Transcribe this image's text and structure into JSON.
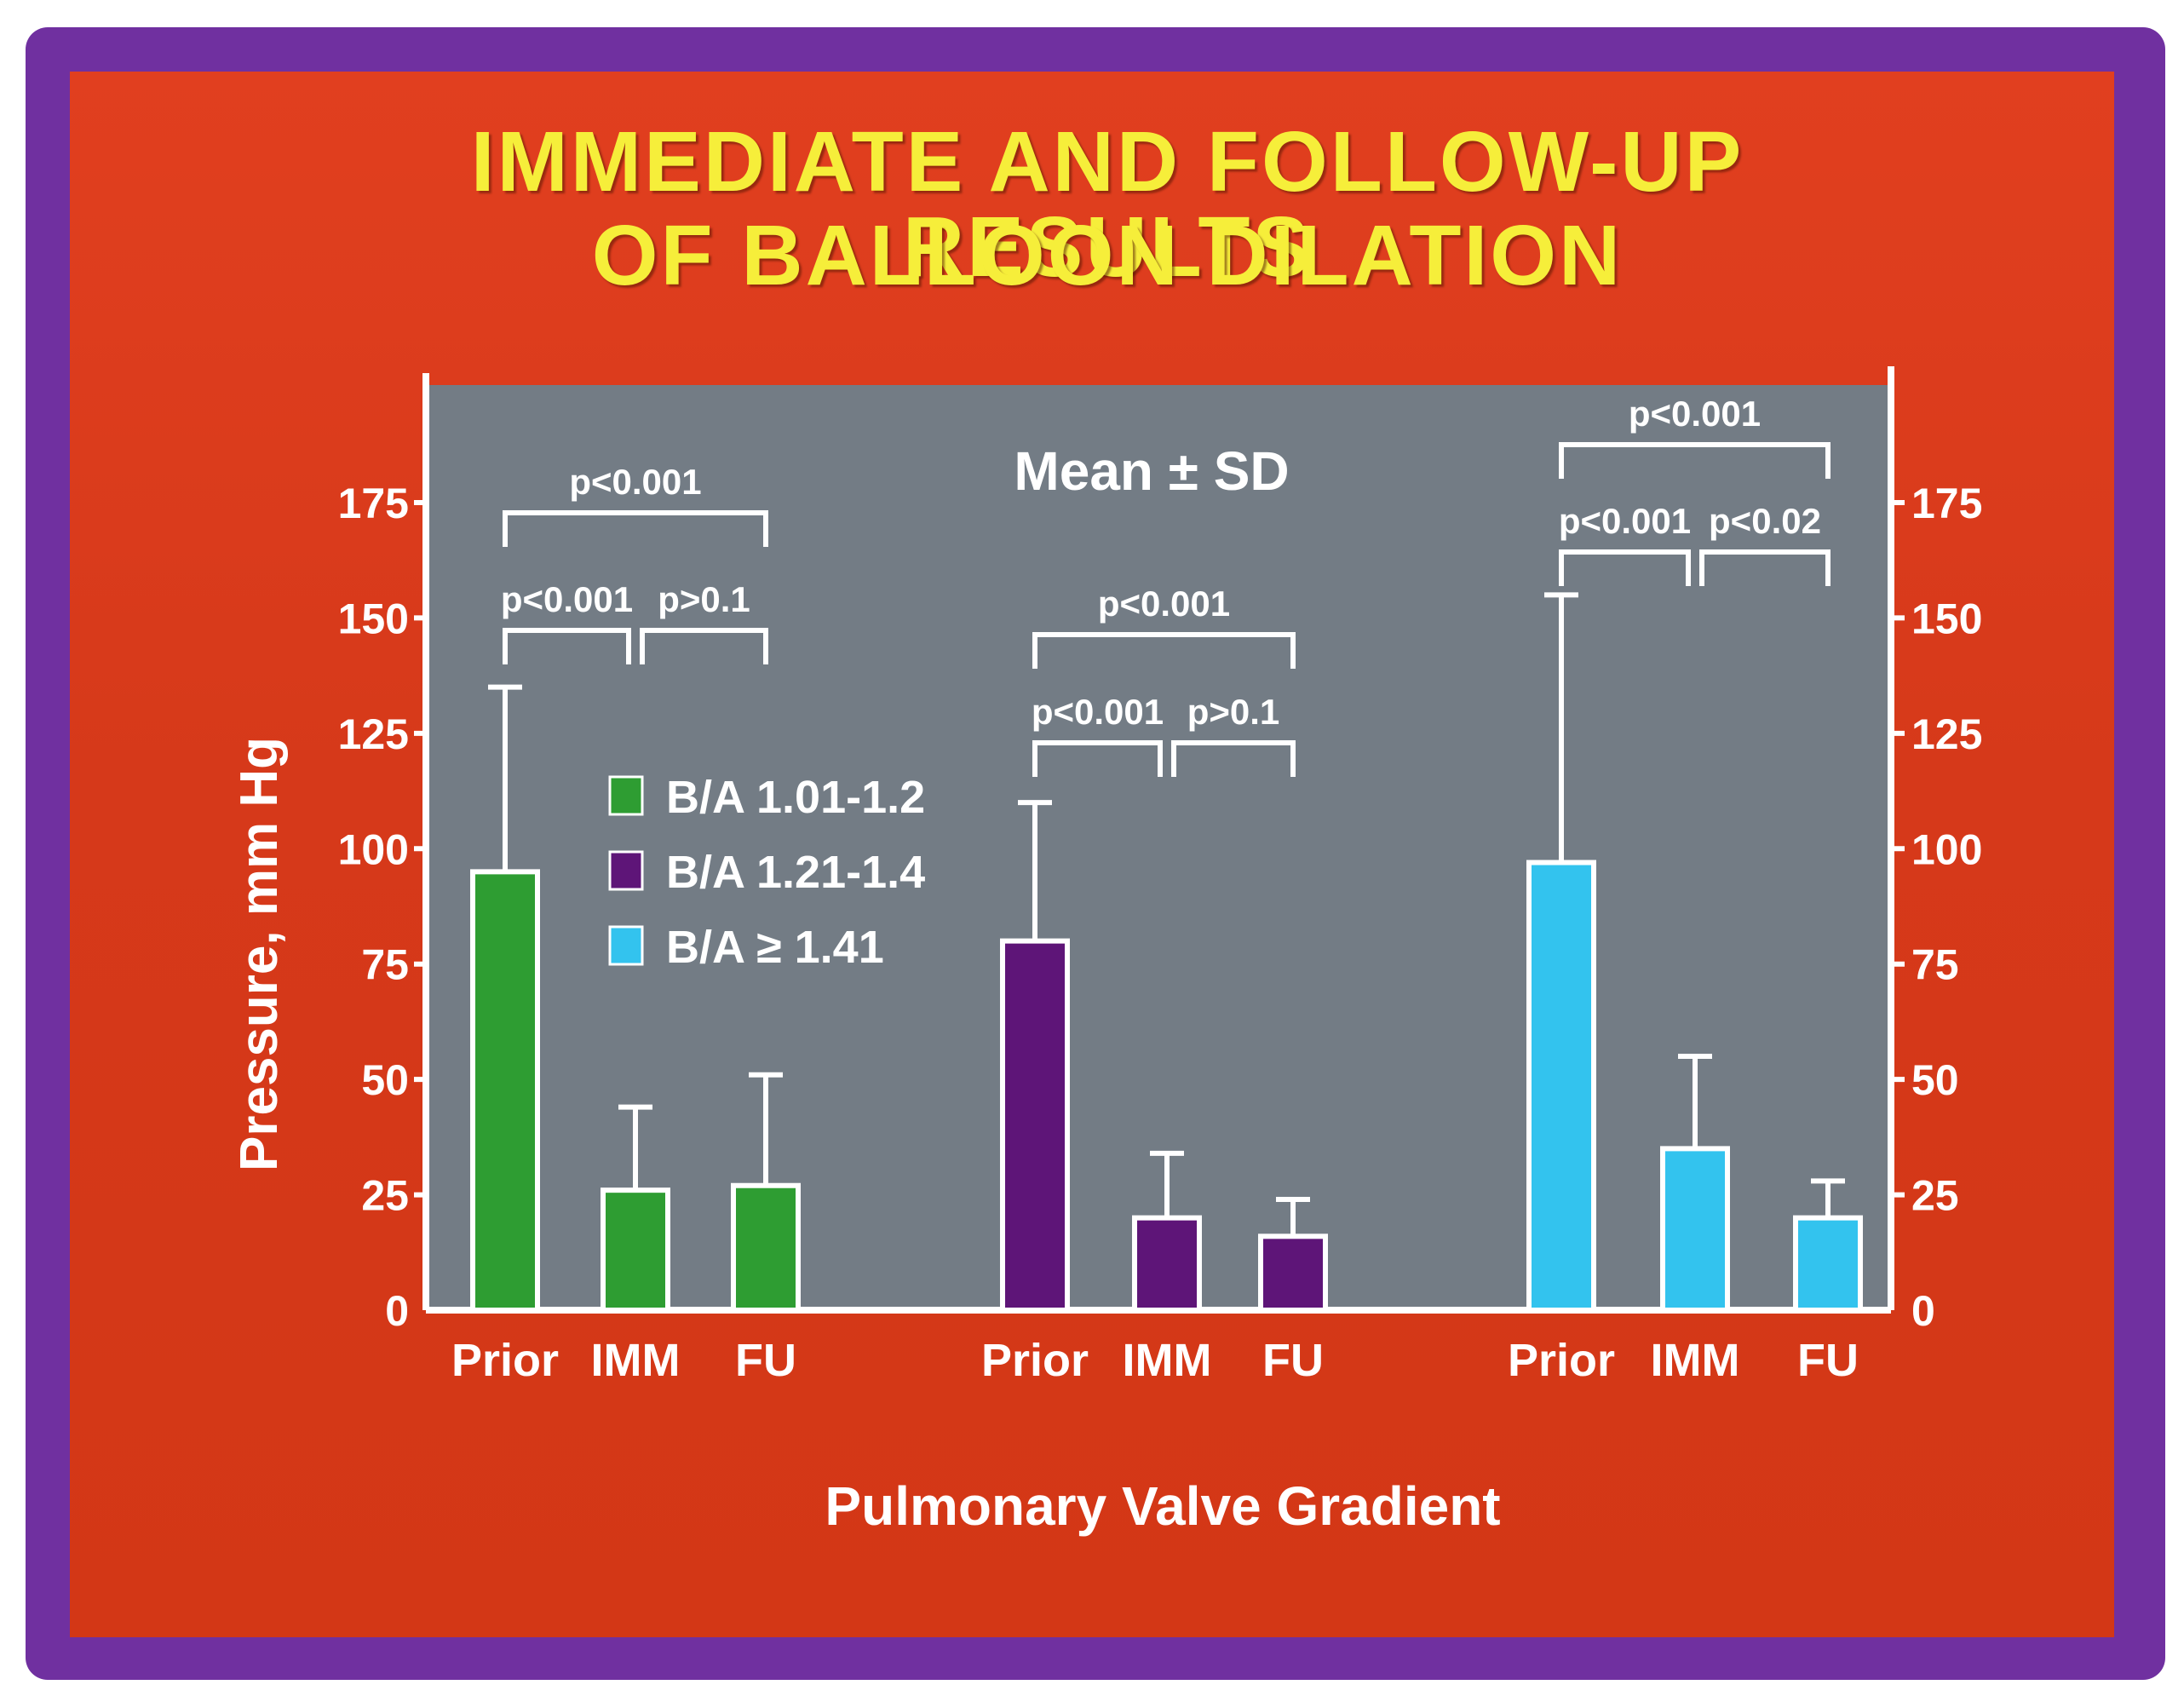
{
  "slide": {
    "title_line1": "IMMEDIATE AND FOLLOW-UP RESULTS",
    "title_line2": "OF BALLOON DILATION"
  },
  "colors": {
    "frame": "#7030a0",
    "slide_background": "#d9391a",
    "plot_background": "#737c85",
    "title": "#f6ee3a",
    "text": "#ffffff",
    "green": "#2e9d32",
    "purple": "#5e1578",
    "cyan": "#33c3ee"
  },
  "chart_data": {
    "type": "bar",
    "annotation": "Mean ± SD",
    "ylabel": "Pressure, mm Hg",
    "xlabel": "Pulmonary Valve Gradient",
    "ylim": [
      0,
      175
    ],
    "yticks": [
      0,
      25,
      50,
      75,
      100,
      125,
      150,
      175
    ],
    "legend_position": "center-left",
    "legend": [
      {
        "label": "B/A  1.01-1.2",
        "color": "#2e9d32"
      },
      {
        "label": "B/A  1.21-1.4",
        "color": "#5e1578"
      },
      {
        "label": "B/A  ≥  1.41",
        "color": "#33c3ee"
      }
    ],
    "categories": [
      "Prior",
      "IMM",
      "FU"
    ],
    "series": [
      {
        "name": "B/A  1.01-1.2",
        "color": "#2e9d32",
        "values": [
          95,
          26,
          27
        ],
        "sd": [
          40,
          18,
          24
        ]
      },
      {
        "name": "B/A  1.21-1.4",
        "color": "#5e1578",
        "values": [
          80,
          20,
          16
        ],
        "sd": [
          30,
          14,
          8
        ]
      },
      {
        "name": "B/A  ≥  1.41",
        "color": "#33c3ee",
        "values": [
          97,
          35,
          20
        ],
        "sd": [
          58,
          20,
          8
        ]
      }
    ],
    "comparisons": [
      {
        "group": 0,
        "from": 0,
        "to": 2,
        "label": "p<0.001",
        "level": 2
      },
      {
        "group": 0,
        "from": 0,
        "to": 1,
        "label": "p<0.001",
        "level": 1
      },
      {
        "group": 0,
        "from": 1,
        "to": 2,
        "label": "p>0.1",
        "level": 1
      },
      {
        "group": 1,
        "from": 0,
        "to": 2,
        "label": "p<0.001",
        "level": 2
      },
      {
        "group": 1,
        "from": 0,
        "to": 1,
        "label": "p<0.001",
        "level": 1
      },
      {
        "group": 1,
        "from": 1,
        "to": 2,
        "label": "p>0.1",
        "level": 1
      },
      {
        "group": 2,
        "from": 0,
        "to": 2,
        "label": "p<0.001",
        "level": 2
      },
      {
        "group": 2,
        "from": 0,
        "to": 1,
        "label": "p<0.001",
        "level": 1
      },
      {
        "group": 2,
        "from": 1,
        "to": 2,
        "label": "p<0.02",
        "level": 1
      }
    ]
  }
}
